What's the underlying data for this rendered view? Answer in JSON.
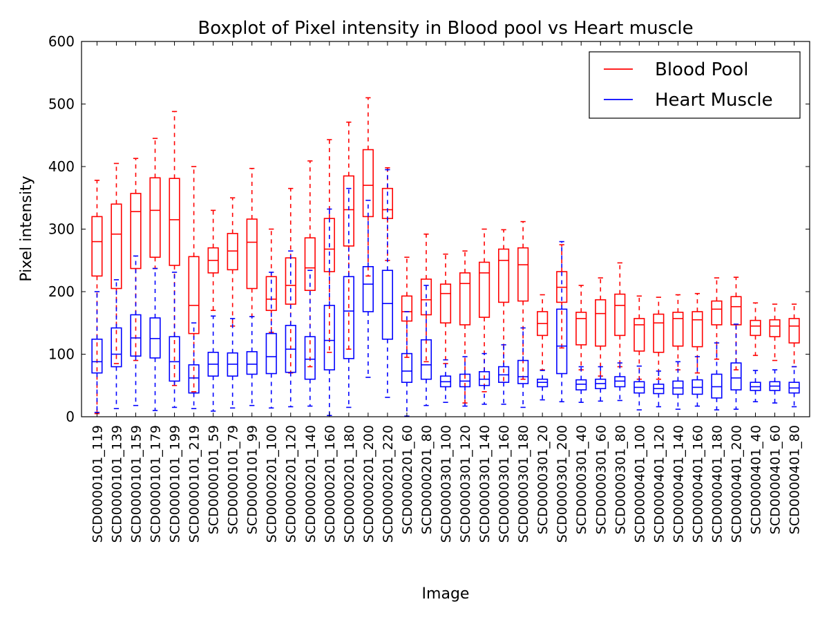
{
  "chart_data": {
    "type": "boxplot",
    "title": "Boxplot of Pixel intensity in Blood pool vs Heart muscle",
    "xlabel": "Image",
    "ylabel": "Pixel intensity",
    "ylim": [
      0,
      600
    ],
    "yticks": [
      0,
      100,
      200,
      300,
      400,
      500,
      600
    ],
    "grid": false,
    "legend_position": "top-right",
    "categories": [
      "SCD0000101_119",
      "SCD0000101_139",
      "SCD0000101_159",
      "SCD0000101_179",
      "SCD0000101_199",
      "SCD0000101_219",
      "SCD0000101_59",
      "SCD0000101_79",
      "SCD0000101_99",
      "SCD0000201_100",
      "SCD0000201_120",
      "SCD0000201_140",
      "SCD0000201_160",
      "SCD0000201_180",
      "SCD0000201_200",
      "SCD0000201_220",
      "SCD0000201_60",
      "SCD0000201_80",
      "SCD0000301_100",
      "SCD0000301_120",
      "SCD0000301_140",
      "SCD0000301_160",
      "SCD0000301_180",
      "SCD0000301_20",
      "SCD0000301_200",
      "SCD0000301_40",
      "SCD0000301_60",
      "SCD0000301_80",
      "SCD0000401_100",
      "SCD0000401_120",
      "SCD0000401_140",
      "SCD0000401_160",
      "SCD0000401_180",
      "SCD0000401_200",
      "SCD0000401_40",
      "SCD0000401_60",
      "SCD0000401_80"
    ],
    "series": [
      {
        "name": "Blood Pool",
        "color": "#ff0000",
        "boxes": [
          {
            "whislo": 5,
            "q1": 225,
            "med": 280,
            "q3": 320,
            "whishi": 378
          },
          {
            "whislo": 85,
            "q1": 205,
            "med": 292,
            "q3": 340,
            "whishi": 405
          },
          {
            "whislo": 90,
            "q1": 237,
            "med": 328,
            "q3": 357,
            "whishi": 413
          },
          {
            "whislo": 237,
            "q1": 255,
            "med": 330,
            "q3": 382,
            "whishi": 445
          },
          {
            "whislo": 50,
            "q1": 242,
            "med": 315,
            "q3": 381,
            "whishi": 488
          },
          {
            "whislo": 40,
            "q1": 133,
            "med": 178,
            "q3": 256,
            "whishi": 400
          },
          {
            "whislo": 170,
            "q1": 230,
            "med": 250,
            "q3": 270,
            "whishi": 330
          },
          {
            "whislo": 145,
            "q1": 235,
            "med": 265,
            "q3": 293,
            "whishi": 350
          },
          {
            "whislo": 160,
            "q1": 205,
            "med": 279,
            "q3": 316,
            "whishi": 397
          },
          {
            "whislo": 135,
            "q1": 170,
            "med": 188,
            "q3": 224,
            "whishi": 300
          },
          {
            "whislo": 70,
            "q1": 180,
            "med": 210,
            "q3": 254,
            "whishi": 365
          },
          {
            "whislo": 80,
            "q1": 202,
            "med": 238,
            "q3": 286,
            "whishi": 409
          },
          {
            "whislo": 103,
            "q1": 232,
            "med": 268,
            "q3": 317,
            "whishi": 443
          },
          {
            "whislo": 108,
            "q1": 273,
            "med": 331,
            "q3": 385,
            "whishi": 471
          },
          {
            "whislo": 225,
            "q1": 320,
            "med": 370,
            "q3": 427,
            "whishi": 510
          },
          {
            "whislo": 250,
            "q1": 317,
            "med": 331,
            "q3": 365,
            "whishi": 398
          },
          {
            "whislo": 95,
            "q1": 153,
            "med": 168,
            "q3": 193,
            "whishi": 255
          },
          {
            "whislo": 88,
            "q1": 163,
            "med": 187,
            "q3": 220,
            "whishi": 292
          },
          {
            "whislo": 85,
            "q1": 150,
            "med": 197,
            "q3": 212,
            "whishi": 260
          },
          {
            "whislo": 22,
            "q1": 147,
            "med": 213,
            "q3": 230,
            "whishi": 265
          },
          {
            "whislo": 40,
            "q1": 159,
            "med": 230,
            "q3": 247,
            "whishi": 300
          },
          {
            "whislo": 55,
            "q1": 183,
            "med": 250,
            "q3": 268,
            "whishi": 299
          },
          {
            "whislo": 60,
            "q1": 185,
            "med": 243,
            "q3": 270,
            "whishi": 312
          },
          {
            "whislo": 75,
            "q1": 130,
            "med": 149,
            "q3": 168,
            "whishi": 195
          },
          {
            "whislo": 110,
            "q1": 183,
            "med": 207,
            "q3": 232,
            "whishi": 275
          },
          {
            "whislo": 75,
            "q1": 115,
            "med": 157,
            "q3": 167,
            "whishi": 210
          },
          {
            "whislo": 65,
            "q1": 113,
            "med": 165,
            "q3": 187,
            "whishi": 222
          },
          {
            "whislo": 80,
            "q1": 130,
            "med": 178,
            "q3": 196,
            "whishi": 246
          },
          {
            "whislo": 60,
            "q1": 105,
            "med": 147,
            "q3": 157,
            "whishi": 193
          },
          {
            "whislo": 60,
            "q1": 103,
            "med": 150,
            "q3": 164,
            "whishi": 191
          },
          {
            "whislo": 75,
            "q1": 113,
            "med": 157,
            "q3": 167,
            "whishi": 195
          },
          {
            "whislo": 70,
            "q1": 112,
            "med": 155,
            "q3": 168,
            "whishi": 197
          },
          {
            "whislo": 92,
            "q1": 147,
            "med": 172,
            "q3": 185,
            "whishi": 222
          },
          {
            "whislo": 75,
            "q1": 147,
            "med": 176,
            "q3": 192,
            "whishi": 223
          },
          {
            "whislo": 98,
            "q1": 130,
            "med": 145,
            "q3": 154,
            "whishi": 182
          },
          {
            "whislo": 90,
            "q1": 128,
            "med": 145,
            "q3": 155,
            "whishi": 180
          },
          {
            "whislo": 80,
            "q1": 118,
            "med": 145,
            "q3": 157,
            "whishi": 180
          }
        ]
      },
      {
        "name": "Heart Muscle",
        "color": "#0000ff",
        "boxes": [
          {
            "whislo": 7,
            "q1": 70,
            "med": 88,
            "q3": 124,
            "whishi": 200
          },
          {
            "whislo": 13,
            "q1": 80,
            "med": 100,
            "q3": 142,
            "whishi": 219
          },
          {
            "whislo": 18,
            "q1": 97,
            "med": 126,
            "q3": 163,
            "whishi": 257
          },
          {
            "whislo": 10,
            "q1": 94,
            "med": 125,
            "q3": 158,
            "whishi": 237
          },
          {
            "whislo": 15,
            "q1": 57,
            "med": 88,
            "q3": 128,
            "whishi": 231
          },
          {
            "whislo": 13,
            "q1": 38,
            "med": 62,
            "q3": 83,
            "whishi": 150
          },
          {
            "whislo": 9,
            "q1": 65,
            "med": 84,
            "q3": 103,
            "whishi": 161
          },
          {
            "whislo": 14,
            "q1": 65,
            "med": 84,
            "q3": 102,
            "whishi": 157
          },
          {
            "whislo": 18,
            "q1": 68,
            "med": 84,
            "q3": 104,
            "whishi": 160
          },
          {
            "whislo": 14,
            "q1": 69,
            "med": 96,
            "q3": 133,
            "whishi": 231
          },
          {
            "whislo": 16,
            "q1": 71,
            "med": 108,
            "q3": 146,
            "whishi": 265
          },
          {
            "whislo": 17,
            "q1": 60,
            "med": 92,
            "q3": 128,
            "whishi": 234
          },
          {
            "whislo": 2,
            "q1": 75,
            "med": 122,
            "q3": 178,
            "whishi": 332
          },
          {
            "whislo": 15,
            "q1": 93,
            "med": 169,
            "q3": 224,
            "whishi": 365
          },
          {
            "whislo": 63,
            "q1": 168,
            "med": 212,
            "q3": 240,
            "whishi": 346
          },
          {
            "whislo": 31,
            "q1": 124,
            "med": 181,
            "q3": 234,
            "whishi": 395
          },
          {
            "whislo": 1,
            "q1": 55,
            "med": 73,
            "q3": 101,
            "whishi": 168
          },
          {
            "whislo": 18,
            "q1": 60,
            "med": 83,
            "q3": 123,
            "whishi": 210
          },
          {
            "whislo": 23,
            "q1": 48,
            "med": 56,
            "q3": 65,
            "whishi": 91
          },
          {
            "whislo": 17,
            "q1": 48,
            "med": 57,
            "q3": 68,
            "whishi": 96
          },
          {
            "whislo": 20,
            "q1": 50,
            "med": 60,
            "q3": 72,
            "whishi": 101
          },
          {
            "whislo": 20,
            "q1": 55,
            "med": 67,
            "q3": 80,
            "whishi": 115
          },
          {
            "whislo": 15,
            "q1": 53,
            "med": 64,
            "q3": 90,
            "whishi": 142
          },
          {
            "whislo": 27,
            "q1": 48,
            "med": 55,
            "q3": 60,
            "whishi": 74
          },
          {
            "whislo": 24,
            "q1": 69,
            "med": 113,
            "q3": 172,
            "whishi": 280
          },
          {
            "whislo": 23,
            "q1": 43,
            "med": 52,
            "q3": 59,
            "whishi": 80
          },
          {
            "whislo": 25,
            "q1": 45,
            "med": 53,
            "q3": 60,
            "whishi": 80
          },
          {
            "whislo": 26,
            "q1": 48,
            "med": 57,
            "q3": 64,
            "whishi": 86
          },
          {
            "whislo": 11,
            "q1": 38,
            "med": 47,
            "q3": 56,
            "whishi": 81
          },
          {
            "whislo": 16,
            "q1": 37,
            "med": 45,
            "q3": 52,
            "whishi": 73
          },
          {
            "whislo": 12,
            "q1": 36,
            "med": 46,
            "q3": 57,
            "whishi": 88
          },
          {
            "whislo": 17,
            "q1": 36,
            "med": 47,
            "q3": 59,
            "whishi": 96
          },
          {
            "whislo": 11,
            "q1": 30,
            "med": 48,
            "q3": 68,
            "whishi": 118
          },
          {
            "whislo": 12,
            "q1": 43,
            "med": 62,
            "q3": 86,
            "whishi": 148
          },
          {
            "whislo": 24,
            "q1": 42,
            "med": 48,
            "q3": 55,
            "whishi": 74
          },
          {
            "whislo": 22,
            "q1": 42,
            "med": 49,
            "q3": 56,
            "whishi": 75
          },
          {
            "whislo": 16,
            "q1": 38,
            "med": 46,
            "q3": 55,
            "whishi": 80
          }
        ]
      }
    ]
  }
}
